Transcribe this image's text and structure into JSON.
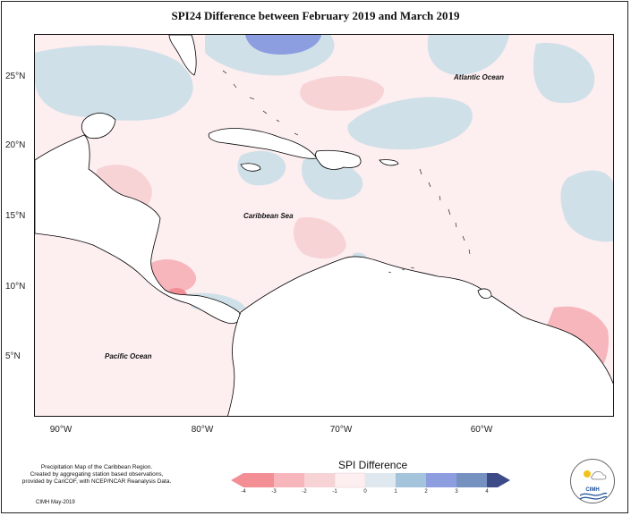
{
  "title": "SPI24 Difference between February 2019 and March 2019",
  "map": {
    "lon_ticks": [
      "90°W",
      "80°W",
      "70°W",
      "60°W"
    ],
    "lat_ticks": [
      "25°N",
      "20°N",
      "15°N",
      "10°N",
      "5°N"
    ],
    "labels": {
      "atlantic": "Atlantic Ocean",
      "caribbean": "Caribbean Sea",
      "pacific": "Pacific Ocean"
    }
  },
  "legend": {
    "title": "SPI Difference",
    "ticks": [
      "-4",
      "-3",
      "-2",
      "-1",
      "0",
      "1",
      "2",
      "3",
      "4"
    ],
    "colors": [
      "#f28e94",
      "#f6b6bb",
      "#f7d3d6",
      "#fdeef0",
      "#dfe8ee",
      "#a4c4db",
      "#8c9de0",
      "#7591c0",
      "#3c4a87"
    ]
  },
  "credit": {
    "line1": "Precipitation Map of the Caribbean Region.",
    "line2": "Created by aggregating station based observations,",
    "line3": "provided by CariCOF, with NCEP/NCAR Reanalysis Data.",
    "date": "CIMH May-2019"
  },
  "logo": {
    "text": "CIMH"
  }
}
